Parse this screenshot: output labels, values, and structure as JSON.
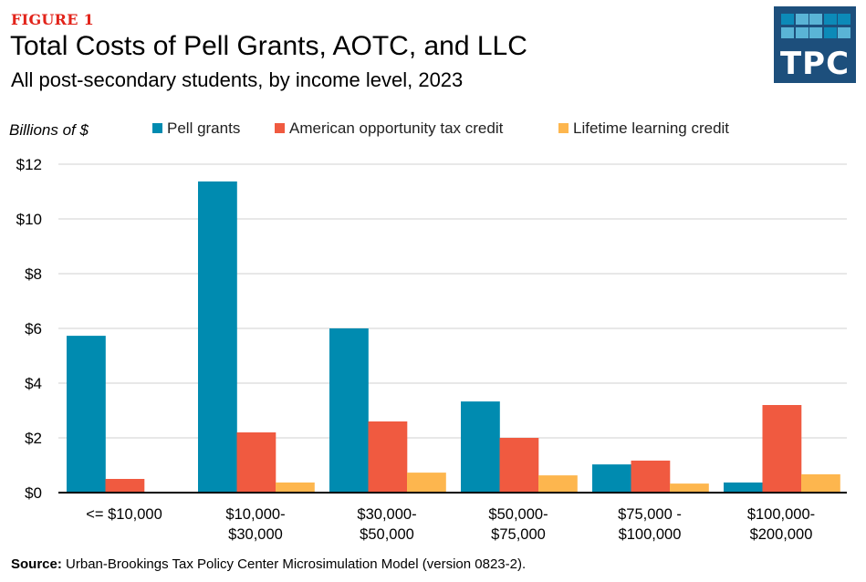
{
  "figure_label": "FIGURE 1",
  "logo": {
    "text": "TPC",
    "colors": {
      "background": "#1d4f7c",
      "light": "#5ab4d6",
      "dark": "#0c8ab8"
    }
  },
  "source": {
    "label": "Source:",
    "text": "Urban-Brookings Tax Policy Center Microsimulation Model (version 0823-2)."
  },
  "chart_data": {
    "type": "bar",
    "title": "Total Costs of Pell Grants, AOTC, and LLC",
    "subtitle": "All post-secondary students, by income level, 2023",
    "xlabel": "",
    "ylabel": "Billions of $",
    "ylim": [
      0,
      12
    ],
    "yticks": [
      0,
      2,
      4,
      6,
      8,
      10,
      12
    ],
    "ytick_labels": [
      "$0",
      "$2",
      "$4",
      "$6",
      "$8",
      "$10",
      "$12"
    ],
    "grid": true,
    "legend_position": "top",
    "categories": [
      [
        "<= $10,000"
      ],
      [
        "$10,000-",
        "$30,000"
      ],
      [
        "$30,000-",
        "$50,000"
      ],
      [
        "$50,000-",
        "$75,000"
      ],
      [
        "$75,000 -",
        "$100,000"
      ],
      [
        "$100,000-",
        "$200,000"
      ]
    ],
    "series": [
      {
        "name": "Pell grants",
        "color": "#008bb0",
        "values": [
          5.73,
          11.37,
          6.0,
          3.33,
          1.03,
          0.37
        ]
      },
      {
        "name": "American opportunity tax credit",
        "color": "#f05a40",
        "values": [
          0.5,
          2.2,
          2.6,
          2.0,
          1.17,
          3.2
        ]
      },
      {
        "name": "Lifetime learning credit",
        "color": "#fdb64e",
        "values": [
          0.0,
          0.37,
          0.73,
          0.63,
          0.33,
          0.67
        ]
      }
    ]
  }
}
